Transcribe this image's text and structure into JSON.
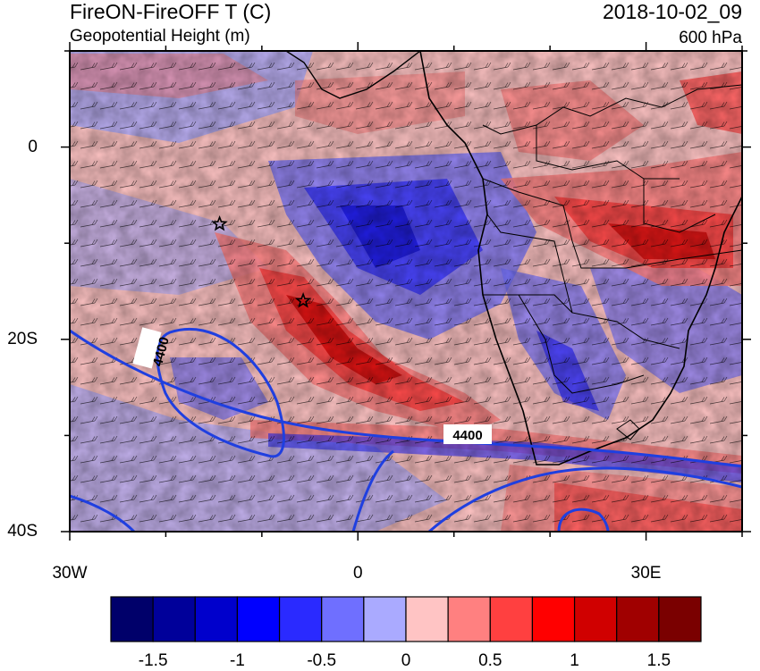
{
  "header": {
    "title_left": "FireON-FireOFF T (C)",
    "subtitle_left": "Geopotential Height (m)",
    "title_right": "2018-10-02_09",
    "subtitle_right": "600 hPa"
  },
  "map": {
    "lon_range": [
      -30,
      40
    ],
    "lat_range": [
      -40,
      10
    ],
    "y_ticks": [
      {
        "lat": 0,
        "label": "0"
      },
      {
        "lat": -20,
        "label": "20S"
      },
      {
        "lat": -40,
        "label": "40S"
      }
    ],
    "x_ticks": [
      {
        "lon": -30,
        "label": "30W"
      },
      {
        "lon": 0,
        "label": "0"
      },
      {
        "lon": 30,
        "label": "30E"
      }
    ],
    "contour_labels": [
      "4400",
      "4400"
    ],
    "markers": [
      {
        "type": "star",
        "lon": -14.4,
        "lat": -8
      },
      {
        "type": "star",
        "lon": -5.7,
        "lat": -16
      }
    ]
  },
  "colorbar": {
    "colors": [
      "#00006a",
      "#00009a",
      "#0000cc",
      "#0000ff",
      "#2a2aff",
      "#6f6fff",
      "#aaaaff",
      "#ffc4c4",
      "#ff8080",
      "#ff4040",
      "#ff0000",
      "#d00000",
      "#a00000",
      "#7a0000"
    ],
    "ticks": [
      {
        "value": -1.5,
        "label": "-1.5"
      },
      {
        "value": -1,
        "label": "-1"
      },
      {
        "value": -0.5,
        "label": "-0.5"
      },
      {
        "value": 0,
        "label": "0"
      },
      {
        "value": 0.5,
        "label": "0.5"
      },
      {
        "value": 1,
        "label": "1"
      },
      {
        "value": 1.5,
        "label": "1.5"
      }
    ]
  }
}
